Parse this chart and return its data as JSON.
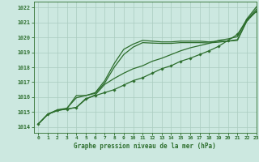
{
  "title": "Graphe pression niveau de la mer (hPa)",
  "background_color": "#cce8e0",
  "grid_color": "#aaccc0",
  "line_color": "#2d6e2d",
  "xlim": [
    -0.5,
    23
  ],
  "ylim": [
    1013.6,
    1022.4
  ],
  "yticks": [
    1014,
    1015,
    1016,
    1017,
    1018,
    1019,
    1020,
    1021,
    1022
  ],
  "xticks": [
    0,
    1,
    2,
    3,
    4,
    5,
    6,
    7,
    8,
    9,
    10,
    11,
    12,
    13,
    14,
    15,
    16,
    17,
    18,
    19,
    20,
    21,
    22,
    23
  ],
  "series": [
    {
      "y": [
        1014.2,
        1014.85,
        1015.1,
        1015.2,
        1015.3,
        1015.9,
        1016.1,
        1016.3,
        1016.5,
        1016.8,
        1017.1,
        1017.3,
        1017.6,
        1017.9,
        1018.1,
        1018.4,
        1018.6,
        1018.85,
        1019.1,
        1019.4,
        1019.8,
        1020.2,
        1021.2,
        1021.75
      ],
      "marker": true,
      "lw": 0.9
    },
    {
      "y": [
        1014.2,
        1014.85,
        1015.15,
        1015.25,
        1015.95,
        1016.1,
        1016.3,
        1017.1,
        1018.25,
        1019.2,
        1019.55,
        1019.8,
        1019.75,
        1019.7,
        1019.7,
        1019.75,
        1019.75,
        1019.75,
        1019.7,
        1019.75,
        1019.75,
        1019.8,
        1021.1,
        1021.75
      ],
      "marker": false,
      "lw": 0.9
    },
    {
      "y": [
        1014.2,
        1014.85,
        1015.1,
        1015.2,
        1015.3,
        1015.85,
        1016.15,
        1016.85,
        1017.25,
        1017.6,
        1017.9,
        1018.1,
        1018.4,
        1018.6,
        1018.85,
        1019.1,
        1019.3,
        1019.45,
        1019.6,
        1019.8,
        1019.9,
        1020.05,
        1021.25,
        1022.05
      ],
      "marker": false,
      "lw": 0.9
    },
    {
      "y": [
        1014.2,
        1014.85,
        1015.12,
        1015.22,
        1016.1,
        1016.1,
        1016.25,
        1016.95,
        1018.0,
        1018.85,
        1019.35,
        1019.65,
        1019.62,
        1019.6,
        1019.6,
        1019.65,
        1019.65,
        1019.65,
        1019.63,
        1019.68,
        1019.75,
        1019.85,
        1021.15,
        1021.9
      ],
      "marker": false,
      "lw": 0.9
    }
  ]
}
